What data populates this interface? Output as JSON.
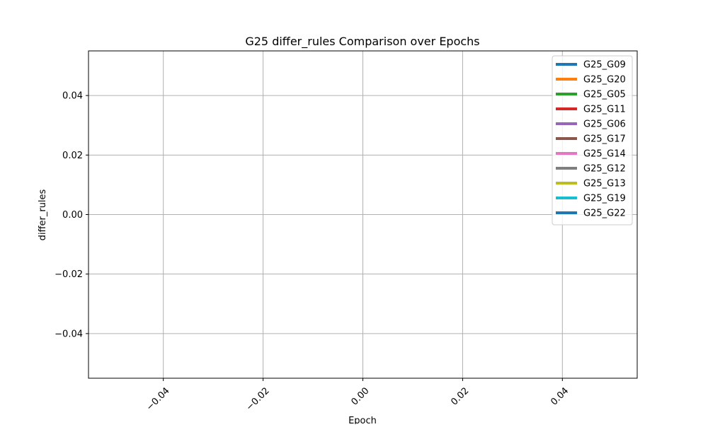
{
  "chart_data": {
    "type": "line",
    "title": "G25 differ_rules Comparison over Epochs",
    "xlabel": "Epoch",
    "ylabel": "differ_rules",
    "xlim": [
      -0.055,
      0.055
    ],
    "ylim": [
      -0.055,
      0.055
    ],
    "x_ticks": [
      -0.04,
      -0.02,
      0.0,
      0.02,
      0.04
    ],
    "x_tick_labels": [
      "−0.04",
      "−0.02",
      "0.00",
      "0.02",
      "0.04"
    ],
    "x_tick_rotation_deg": 45,
    "y_ticks": [
      0.04,
      0.02,
      0.0,
      -0.02,
      -0.04
    ],
    "y_tick_labels": [
      "0.04",
      "0.02",
      "0.00",
      "−0.02",
      "−0.04"
    ],
    "grid": true,
    "legend_position": "top-right",
    "series": [
      {
        "name": "G25_G09",
        "color": "#1f77b4",
        "x": [],
        "y": []
      },
      {
        "name": "G25_G20",
        "color": "#ff7f0e",
        "x": [],
        "y": []
      },
      {
        "name": "G25_G05",
        "color": "#2ca02c",
        "x": [],
        "y": []
      },
      {
        "name": "G25_G11",
        "color": "#d62728",
        "x": [],
        "y": []
      },
      {
        "name": "G25_G06",
        "color": "#9467bd",
        "x": [],
        "y": []
      },
      {
        "name": "G25_G17",
        "color": "#8c564b",
        "x": [],
        "y": []
      },
      {
        "name": "G25_G14",
        "color": "#e377c2",
        "x": [],
        "y": []
      },
      {
        "name": "G25_G12",
        "color": "#7f7f7f",
        "x": [],
        "y": []
      },
      {
        "name": "G25_G13",
        "color": "#bcbd22",
        "x": [],
        "y": []
      },
      {
        "name": "G25_G19",
        "color": "#17becf",
        "x": [],
        "y": []
      },
      {
        "name": "G25_G22",
        "color": "#1f77b4",
        "x": [],
        "y": []
      }
    ]
  }
}
